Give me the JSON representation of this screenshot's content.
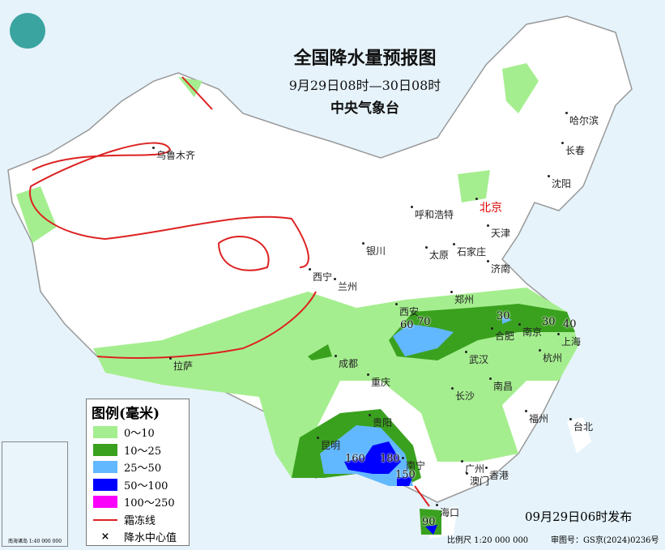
{
  "title": "全国降水量预报图",
  "period": "9月29日08时—30日08时",
  "agency": "中央气象台",
  "issue_time": "09月29日06时发布",
  "scale": "比例尺 1:20 000 000",
  "map_number": "审图号：GS京(2024)0236号",
  "legend": {
    "title": "图例(毫米)",
    "items": [
      {
        "label": "0～10",
        "color": "#a5ee8f"
      },
      {
        "label": "10～25",
        "color": "#3aa11f"
      },
      {
        "label": "25～50",
        "color": "#62b8ff"
      },
      {
        "label": "50～100",
        "color": "#0000fe"
      },
      {
        "label": "100～250",
        "color": "#fa00fa"
      }
    ],
    "frost_line": "霜冻线",
    "center_value": "降水中心值"
  },
  "cities": [
    {
      "name": "北京",
      "capital": true
    },
    {
      "name": "乌鲁木齐"
    },
    {
      "name": "哈尔滨"
    },
    {
      "name": "长春"
    },
    {
      "name": "沈阳"
    },
    {
      "name": "天津"
    },
    {
      "name": "呼和浩特"
    },
    {
      "name": "石家庄"
    },
    {
      "name": "太原"
    },
    {
      "name": "济南"
    },
    {
      "name": "银川"
    },
    {
      "name": "西宁"
    },
    {
      "name": "兰州"
    },
    {
      "name": "郑州"
    },
    {
      "name": "西安"
    },
    {
      "name": "合肥"
    },
    {
      "name": "南京"
    },
    {
      "name": "上海"
    },
    {
      "name": "武汉"
    },
    {
      "name": "杭州"
    },
    {
      "name": "成都"
    },
    {
      "name": "重庆"
    },
    {
      "name": "长沙"
    },
    {
      "name": "南昌"
    },
    {
      "name": "拉萨"
    },
    {
      "name": "贵阳"
    },
    {
      "name": "昆明"
    },
    {
      "name": "南宁"
    },
    {
      "name": "广州"
    },
    {
      "name": "福州"
    },
    {
      "name": "台北"
    },
    {
      "name": "香港"
    },
    {
      "name": "澳门"
    },
    {
      "name": "海口"
    }
  ],
  "precip_centers": [
    {
      "value": "60"
    },
    {
      "value": "70"
    },
    {
      "value": "30"
    },
    {
      "value": "30"
    },
    {
      "value": "40"
    },
    {
      "value": "160"
    },
    {
      "value": "180"
    },
    {
      "value": "150"
    },
    {
      "value": "90"
    }
  ],
  "inset_caption": "南海诸岛 1:40 000 000"
}
